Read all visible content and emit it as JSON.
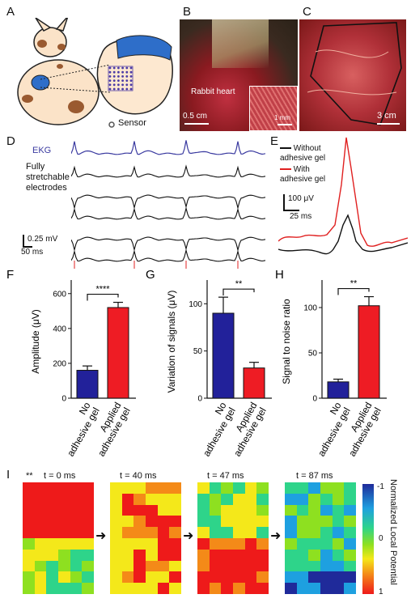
{
  "panel_a": {
    "letter": "A",
    "sensor_label": "Sensor"
  },
  "panel_b": {
    "letter": "B",
    "photo_label": "Rabbit heart",
    "scale_main": "0.5 cm",
    "scale_inset": "1 mm"
  },
  "panel_c": {
    "letter": "C",
    "scale": "3 cm"
  },
  "panel_d": {
    "letter": "D",
    "ekg_label": "EKG",
    "electrodes_label_lines": [
      "Fully",
      "stretchable",
      "electrodes"
    ],
    "scale_v": "0.25 mV",
    "scale_t": "50 ms",
    "colors": {
      "ekg": "#3a3aa0",
      "trace": "#111111",
      "marker": "#e02020"
    }
  },
  "panel_e": {
    "letter": "E",
    "legend": [
      {
        "name": "Without\nadhesive gel",
        "color": "#111111"
      },
      {
        "name": "With\nadhesive gel",
        "color": "#e02020"
      }
    ],
    "scale_v": "100 μV",
    "scale_t": "25 ms"
  },
  "bar_panels": [
    {
      "letter": "F",
      "ylabel": "Amplitude (μV)",
      "yticks": [
        0,
        200,
        400,
        600
      ],
      "ylim": [
        0,
        650
      ],
      "categories": [
        "No\nadhesive gel",
        "Applied\nadhesive gel"
      ],
      "values": [
        160,
        520
      ],
      "errors": [
        25,
        30
      ],
      "significance": "****",
      "colors": [
        "#22219a",
        "#ee1c24"
      ]
    },
    {
      "letter": "G",
      "ylabel": "Variation of signals (μV)",
      "yticks": [
        0,
        50,
        100
      ],
      "ylim": [
        0,
        120
      ],
      "categories": [
        "No\nadhesive gel",
        "Applied\nadhesive gel"
      ],
      "values": [
        90,
        32
      ],
      "errors": [
        17,
        6
      ],
      "significance": "**",
      "colors": [
        "#22219a",
        "#ee1c24"
      ]
    },
    {
      "letter": "H",
      "ylabel": "Signal to noise ratio",
      "yticks": [
        0,
        50,
        100
      ],
      "ylim": [
        0,
        125
      ],
      "categories": [
        "No\nadhesive gel",
        "Applied\nadhesive gel"
      ],
      "values": [
        18,
        102
      ],
      "errors": [
        3,
        10
      ],
      "significance": "**",
      "colors": [
        "#22219a",
        "#ee1c24"
      ]
    }
  ],
  "panel_i": {
    "letter": "I",
    "stars": "**",
    "frames": [
      {
        "label": "t = 0 ms"
      },
      {
        "label": "t = 40 ms"
      },
      {
        "label": "t = 47 ms"
      },
      {
        "label": "t = 87 ms"
      }
    ],
    "colorbar": {
      "label": "Normalized Local Potential",
      "ticks": [
        "-1",
        "0",
        "1"
      ]
    }
  }
}
